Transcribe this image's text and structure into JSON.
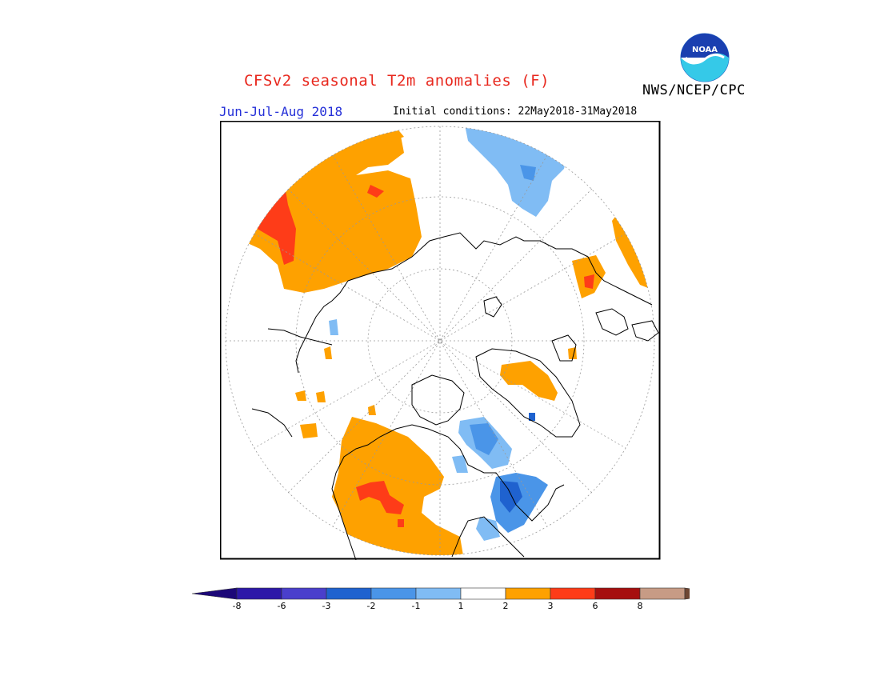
{
  "title": "CFSv2 seasonal T2m anomalies (F)",
  "agency": "NWS/NCEP/CPC",
  "logo_text": "NOAA",
  "period": "Jun-Jul-Aug 2018",
  "initial_conditions": "Initial conditions: 22May2018-31May2018",
  "colorbar": {
    "ticks": [
      "-8",
      "-6",
      "-3",
      "-2",
      "-1",
      "1",
      "2",
      "3",
      "6",
      "8"
    ],
    "colors": [
      "#2d18a8",
      "#4a3fcc",
      "#1f62cf",
      "#4a95e8",
      "#80bcf4",
      "#ffffff",
      "#fea100",
      "#fe3c18",
      "#a60f0f",
      "#c79b85"
    ],
    "under_color": "#1c0878",
    "over_color": "#6e4734"
  },
  "map": {
    "projection": "north polar stereographic",
    "field": "T2m anomalies",
    "colors": {
      "warm_1_2": "#fea100",
      "warm_2_3": "#fe3c18",
      "cool_1_2": "#80bcf4",
      "cool_2_3": "#4a95e8",
      "cool_3_6": "#1f62cf"
    }
  }
}
